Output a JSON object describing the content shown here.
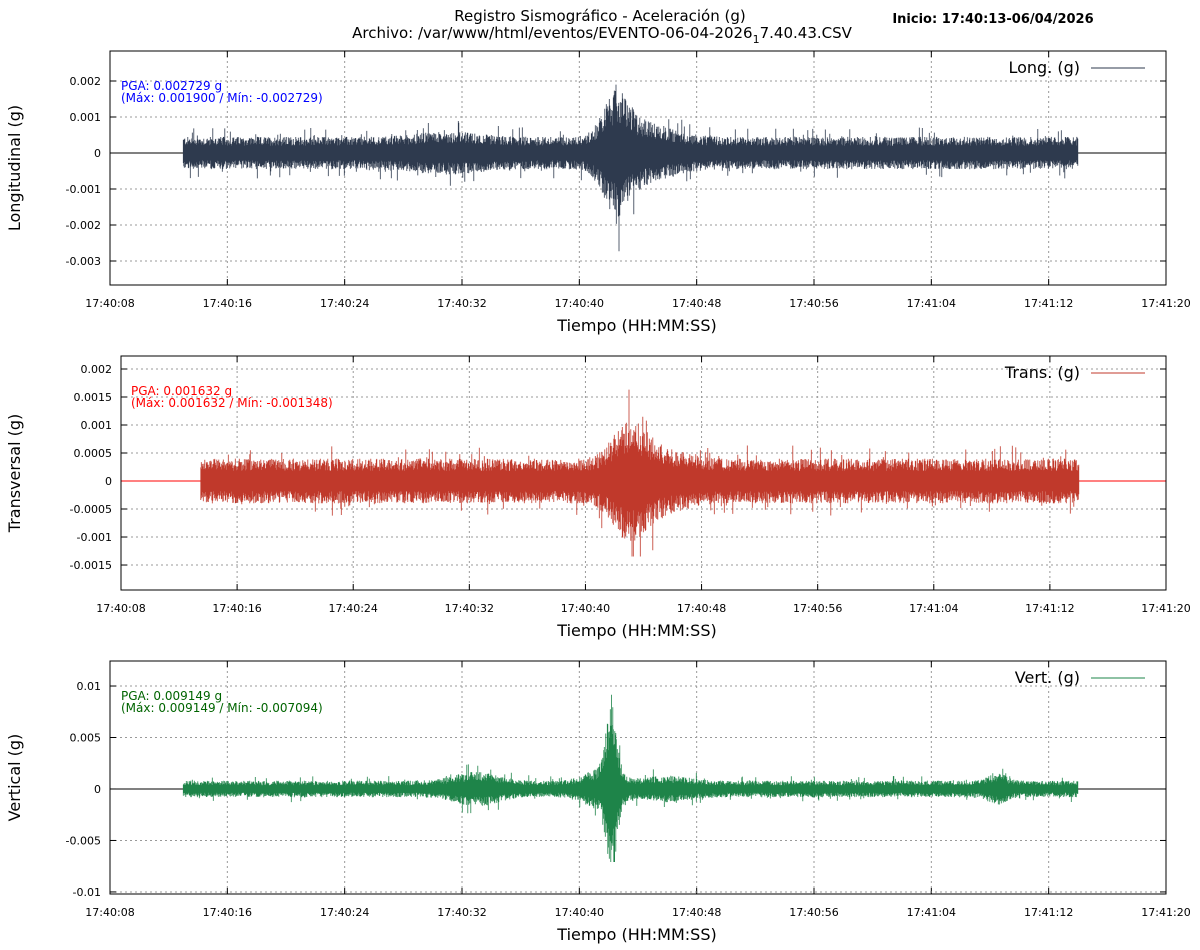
{
  "header": {
    "title_line1": "Registro Sismográfico - Aceleración (g)",
    "title_line2_prefix": "Archivo: /var/www/html/eventos/EVENTO-06-04-2026",
    "title_line2_sub": "1",
    "title_line2_suffix": "7.40.43.CSV",
    "inicio": "Inicio: 17:40:13-06/04/2026"
  },
  "chart_data": [
    {
      "type": "line",
      "title": "Longitudinal",
      "legend": "Long. (g)",
      "legend_position": "top-right",
      "xlabel": "Tiempo (HH:MM:SS)",
      "ylabel": "Longitudinal (g)",
      "color": "#2e3a4e",
      "annot_color": "#0000ff",
      "annot_line1": "PGA: 0.002729 g",
      "annot_line2": "(Máx: 0.001900 / Mín: -0.002729)",
      "pga": 0.002729,
      "max": 0.0019,
      "min": -0.002729,
      "xlim_seconds": [
        8,
        80
      ],
      "signal_seconds": [
        13,
        74
      ],
      "xticks": [
        "17:40:08",
        "17:40:16",
        "17:40:24",
        "17:40:32",
        "17:40:40",
        "17:40:48",
        "17:40:56",
        "17:41:04",
        "17:41:12",
        "17:41:20"
      ],
      "ylim": [
        -0.003667,
        0.002833
      ],
      "yticks": [
        0.002,
        0.001,
        0,
        -0.001,
        -0.002,
        -0.003
      ],
      "ytick_labels": [
        "0.002",
        "0.001",
        "0",
        "-0.001",
        "-0.002",
        "-0.003"
      ],
      "baseline_amplitude": 0.00045,
      "events": [
        {
          "t": 42.5,
          "amp": 0.0011,
          "width": 1.2
        },
        {
          "t": 44.5,
          "amp": 0.0004,
          "width": 2.5
        },
        {
          "t": 31,
          "amp": 0.00015,
          "width": 3
        }
      ],
      "grid": true
    },
    {
      "type": "line",
      "title": "Transversal",
      "legend": "Trans. (g)",
      "legend_position": "top-right",
      "xlabel": "Tiempo (HH:MM:SS)",
      "ylabel": "Transversal (g)",
      "color": "#c0392b",
      "annot_color": "#ff0000",
      "annot_line1": "PGA: 0.001632 g",
      "annot_line2": "(Máx: 0.001632 / Mín: -0.001348)",
      "pga": 0.001632,
      "max": 0.001632,
      "min": -0.001348,
      "xlim_seconds": [
        8,
        80
      ],
      "signal_seconds": [
        13.5,
        74
      ],
      "xticks": [
        "17:40:08",
        "17:40:16",
        "17:40:24",
        "17:40:32",
        "17:40:40",
        "17:40:48",
        "17:40:56",
        "17:41:04",
        "17:41:12",
        "17:41:20"
      ],
      "ylim": [
        -0.001946,
        0.002232
      ],
      "yticks": [
        0.002,
        0.0015,
        0.001,
        0.0005,
        0,
        -0.0005,
        -0.001,
        -0.0015
      ],
      "ytick_labels": [
        "0.002",
        "0.0015",
        "0.001",
        "0.0005",
        "0",
        "-0.0005",
        "-0.001",
        "-0.0015"
      ],
      "baseline_amplitude": 0.0004,
      "events": [
        {
          "t": 43,
          "amp": 0.0006,
          "width": 1.5
        },
        {
          "t": 45,
          "amp": 0.0002,
          "width": 2.5
        }
      ],
      "grid": true
    },
    {
      "type": "line",
      "title": "Vertical",
      "legend": "Vert. (g)",
      "legend_position": "top-right",
      "xlabel": "Tiempo (HH:MM:SS)",
      "ylabel": "Vertical (g)",
      "color": "#1e8449",
      "annot_color": "#006400",
      "annot_line1": "PGA: 0.009149 g",
      "annot_line2": "(Máx: 0.009149 / Mín: -0.007094)",
      "pga": 0.009149,
      "max": 0.009149,
      "min": -0.007094,
      "xlim_seconds": [
        8,
        80
      ],
      "signal_seconds": [
        13,
        74
      ],
      "xticks": [
        "17:40:08",
        "17:40:16",
        "17:40:24",
        "17:40:32",
        "17:40:40",
        "17:40:48",
        "17:40:56",
        "17:41:04",
        "17:41:12",
        "17:41:20"
      ],
      "ylim": [
        -0.0102,
        0.01243
      ],
      "yticks": [
        0.01,
        0.005,
        0,
        -0.005,
        -0.01
      ],
      "ytick_labels": [
        "0.01",
        "0.005",
        "0",
        "-0.005",
        "-0.01"
      ],
      "baseline_amplitude": 0.0008,
      "events": [
        {
          "t": 42.2,
          "amp": 0.0065,
          "width": 0.5
        },
        {
          "t": 41.5,
          "amp": 0.0012,
          "width": 1.5
        },
        {
          "t": 33,
          "amp": 0.0009,
          "width": 2
        },
        {
          "t": 68.5,
          "amp": 0.0008,
          "width": 0.8
        },
        {
          "t": 46,
          "amp": 0.0005,
          "width": 2
        }
      ],
      "grid": true
    }
  ]
}
